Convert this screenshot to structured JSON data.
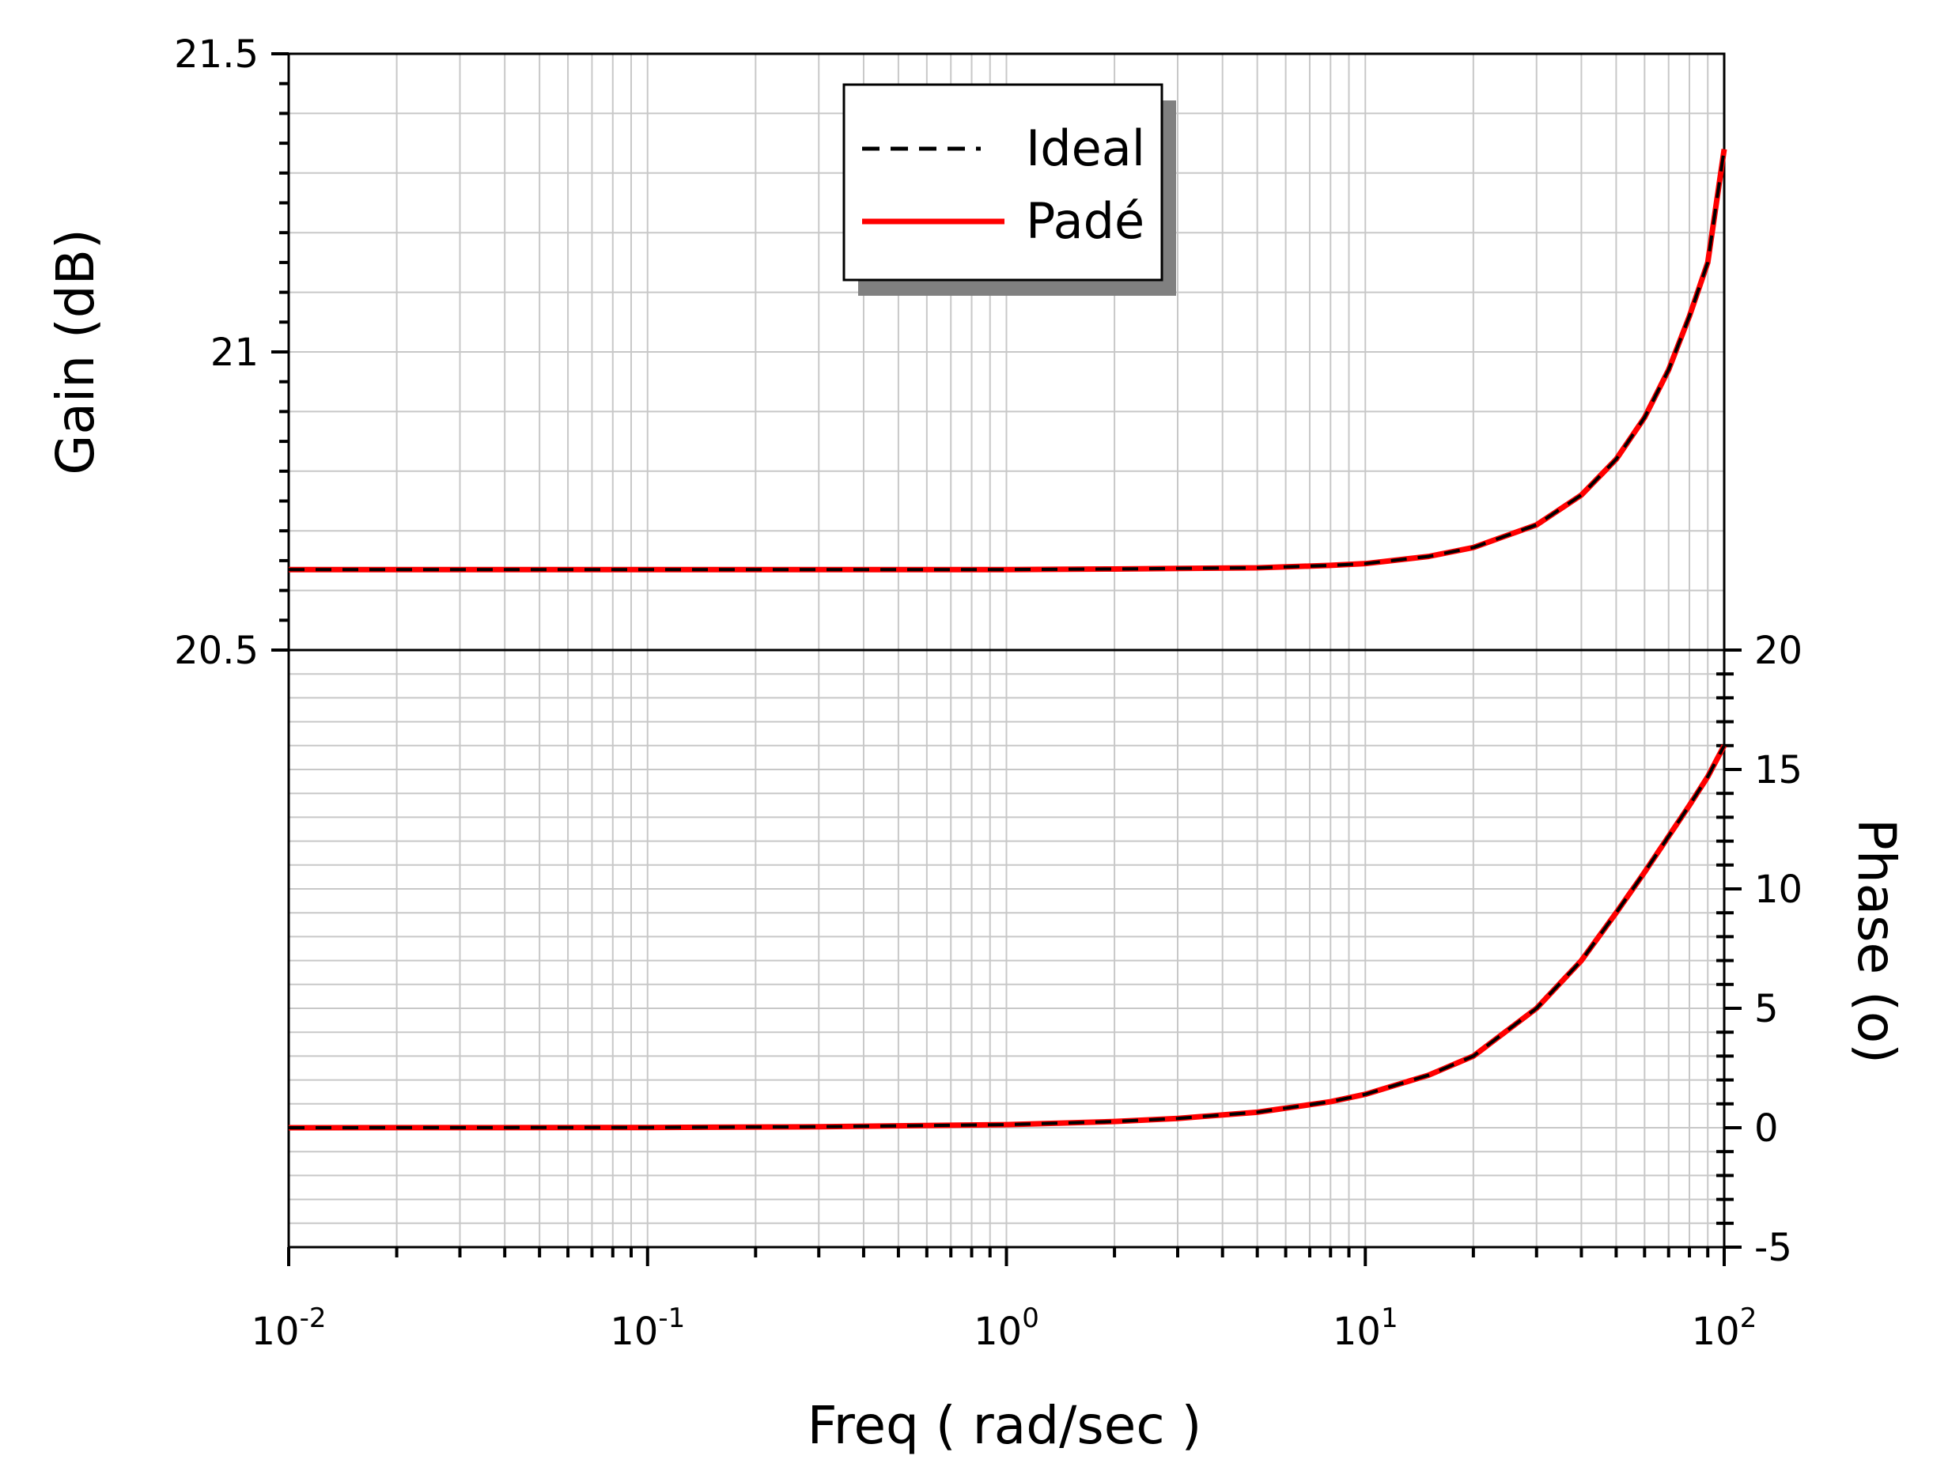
{
  "chart_data": {
    "type": "line",
    "xlabel": "Freq ( rad/sec )",
    "x_scale": "log",
    "xlim": [
      0.01,
      100
    ],
    "x_ticks": [
      {
        "value": 0.01,
        "base": "10",
        "exp": "-2"
      },
      {
        "value": 0.1,
        "base": "10",
        "exp": "-1"
      },
      {
        "value": 1,
        "base": "10",
        "exp": "0"
      },
      {
        "value": 10,
        "base": "10",
        "exp": "1"
      },
      {
        "value": 100,
        "base": "10",
        "exp": "2"
      }
    ],
    "grid": true,
    "legend_position": "top-center",
    "panels": [
      {
        "id": "gain",
        "ylabel": "Gain (dB)",
        "ylim": [
          20.5,
          21.5
        ],
        "y_ticks": [
          "20.5",
          "21",
          "21.5"
        ],
        "y_axis_side": "left",
        "x": [
          0.01,
          0.1,
          1,
          2,
          5,
          8,
          10,
          15,
          20,
          30,
          40,
          50,
          60,
          70,
          80,
          90,
          100
        ],
        "series": [
          {
            "name": "Ideal",
            "color": "#000000",
            "style": "dashed",
            "values": [
              20.635,
              20.635,
              20.635,
              20.636,
              20.638,
              20.642,
              20.645,
              20.657,
              20.672,
              20.71,
              20.76,
              20.82,
              20.89,
              20.97,
              21.06,
              21.15,
              21.34
            ]
          },
          {
            "name": "Padé",
            "color": "#ff0000",
            "style": "solid",
            "values": [
              20.635,
              20.635,
              20.635,
              20.636,
              20.638,
              20.642,
              20.645,
              20.657,
              20.672,
              20.71,
              20.76,
              20.82,
              20.89,
              20.97,
              21.06,
              21.15,
              21.34
            ]
          }
        ]
      },
      {
        "id": "phase",
        "ylabel": "Phase (o)",
        "ylim": [
          -5,
          20
        ],
        "y_ticks": [
          "-5",
          "0",
          "5",
          "10",
          "15",
          "20"
        ],
        "y_axis_side": "right",
        "x": [
          0.01,
          0.1,
          0.3,
          1,
          2,
          3,
          5,
          8,
          10,
          15,
          20,
          30,
          40,
          50,
          60,
          70,
          80,
          90,
          100
        ],
        "series": [
          {
            "name": "Ideal",
            "color": "#000000",
            "style": "dashed",
            "values": [
              0.0,
              0.01,
              0.04,
              0.13,
              0.26,
              0.39,
              0.65,
              1.09,
              1.4,
              2.2,
              3.0,
              5.0,
              7.0,
              9.0,
              10.7,
              12.2,
              13.5,
              14.7,
              16.0
            ]
          },
          {
            "name": "Padé",
            "color": "#ff0000",
            "style": "solid",
            "values": [
              0.0,
              0.01,
              0.04,
              0.13,
              0.26,
              0.39,
              0.65,
              1.09,
              1.4,
              2.2,
              3.0,
              5.0,
              7.0,
              9.0,
              10.7,
              12.2,
              13.5,
              14.7,
              16.0
            ]
          }
        ]
      }
    ],
    "legend": [
      {
        "name": "Ideal",
        "color": "#000000",
        "style": "dashed"
      },
      {
        "name": "Padé",
        "color": "#ff0000",
        "style": "solid"
      }
    ]
  }
}
